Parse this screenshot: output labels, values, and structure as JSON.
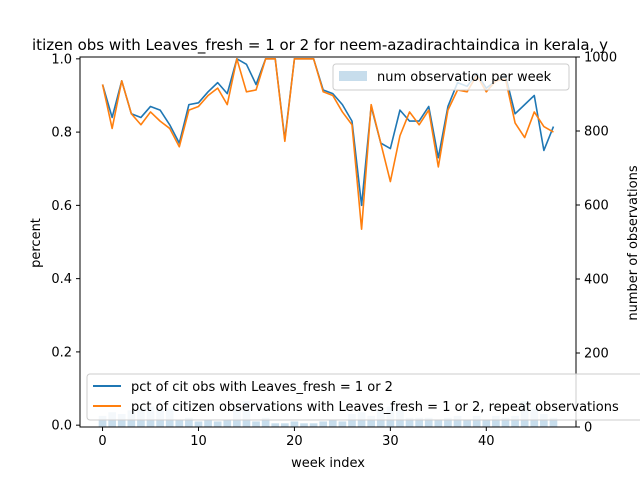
{
  "chart_data": {
    "type": "line",
    "title": "itizen obs with Leaves_fresh = 1 or 2 for neem-azadirachtaindica in kerala, y",
    "xlabel": "week index",
    "ylabel": "percent",
    "y2label": "number of observations",
    "xlim": [
      -2.35,
      49.35
    ],
    "ylim": [
      -0.005,
      1.005
    ],
    "y2lim": [
      0,
      1000
    ],
    "xticks": [
      0,
      10,
      20,
      30,
      40
    ],
    "yticks": [
      0.0,
      0.2,
      0.4,
      0.6,
      0.8,
      1.0
    ],
    "y2ticks": [
      0,
      200,
      400,
      600,
      800,
      1000
    ],
    "x": [
      0,
      1,
      2,
      3,
      4,
      5,
      6,
      7,
      8,
      9,
      10,
      11,
      12,
      13,
      14,
      15,
      16,
      17,
      18,
      19,
      20,
      21,
      22,
      23,
      24,
      25,
      26,
      27,
      28,
      29,
      30,
      31,
      32,
      33,
      34,
      35,
      36,
      37,
      38,
      39,
      40,
      41,
      42,
      43,
      44,
      45,
      46,
      47
    ],
    "series": [
      {
        "name": "pct of cit obs with Leaves_fresh = 1 or 2",
        "color": "#1f77b4",
        "kind": "line",
        "values": [
          0.93,
          0.84,
          0.94,
          0.85,
          0.84,
          0.87,
          0.86,
          0.82,
          0.77,
          0.875,
          0.88,
          0.91,
          0.935,
          0.905,
          1.0,
          0.985,
          0.93,
          1.0,
          1.0,
          0.78,
          1.0,
          1.0,
          1.0,
          0.915,
          0.905,
          0.875,
          0.83,
          0.6,
          0.87,
          0.77,
          0.755,
          0.86,
          0.83,
          0.83,
          0.87,
          0.73,
          0.87,
          0.935,
          0.925,
          0.96,
          0.92,
          0.94,
          0.955,
          0.85,
          0.875,
          0.9,
          0.75,
          0.815
        ]
      },
      {
        "name": "pct of citizen observations with Leaves_fresh = 1 or 2, repeat observations",
        "color": "#ff7f0e",
        "kind": "line",
        "values": [
          0.93,
          0.81,
          0.94,
          0.85,
          0.82,
          0.855,
          0.83,
          0.81,
          0.76,
          0.86,
          0.87,
          0.9,
          0.92,
          0.875,
          1.0,
          0.91,
          0.915,
          1.0,
          1.0,
          0.775,
          1.0,
          1.0,
          1.0,
          0.91,
          0.9,
          0.855,
          0.82,
          0.535,
          0.875,
          0.77,
          0.665,
          0.79,
          0.855,
          0.82,
          0.86,
          0.705,
          0.86,
          0.915,
          0.91,
          0.955,
          0.91,
          0.94,
          0.945,
          0.825,
          0.785,
          0.855,
          0.815,
          0.8
        ]
      },
      {
        "name": "num observation per week",
        "color": "#1f77b4",
        "opacity": 0.25,
        "kind": "bar",
        "axis": "y2",
        "values": [
          30,
          40,
          35,
          45,
          50,
          55,
          45,
          50,
          20,
          25,
          15,
          20,
          15,
          20,
          55,
          70,
          15,
          25,
          10,
          10,
          15,
          10,
          10,
          15,
          20,
          15,
          35,
          40,
          30,
          45,
          55,
          45,
          25,
          25,
          25,
          20,
          25,
          30,
          20,
          30,
          20,
          30,
          25,
          30,
          70,
          50,
          35,
          25
        ]
      }
    ],
    "legend": {
      "top_right": [
        "num observation per week"
      ],
      "bottom_left": [
        "pct of cit obs with Leaves_fresh = 1 or 2",
        "pct of citizen observations with Leaves_fresh = 1 or 2, repeat observations"
      ]
    },
    "grid": false
  }
}
